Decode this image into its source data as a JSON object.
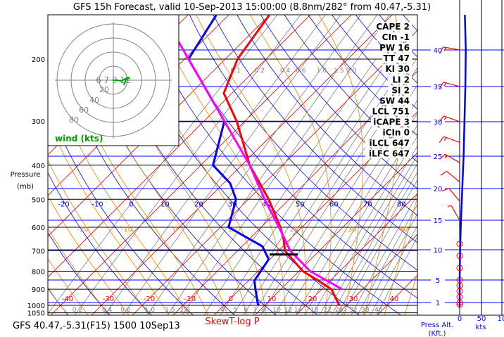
{
  "title": "GFS 15h Forecast, valid 10-Sep-2013 15:00:00 (8.8nm/282° from 40.47,-5.31)",
  "footer_left": "GFS 40.47,-5.31(F15) 1500 10Sep13",
  "footer_center": "SkewT-log P",
  "pressure_axis_label": [
    "Pressure",
    "(mb)"
  ],
  "right_panel": {
    "alt_label": [
      "Press Alt.",
      "(Kft.)"
    ],
    "speed_ticks": [
      "0",
      "50",
      "10"
    ],
    "speed_unit": "kts"
  },
  "hodograph": {
    "label": "wind (kts)",
    "ring_labels": [
      "20",
      "40",
      "60",
      "80"
    ],
    "height_labels": "6 7 9 12"
  },
  "indices": [
    "CAPE 2",
    "CIn -1",
    "PW 16",
    "TT 47",
    "KI 30",
    "LI 2",
    "SI 2",
    "SW 44",
    "LCL 751",
    "iCAPE 3",
    "iCIn 0",
    "iLCL 647",
    "iLFC 647"
  ],
  "colors": {
    "temperature": "#ff0000",
    "dewpoint": "#0000ff",
    "parcel": "#ff00ff",
    "isotherm": "#ff0000",
    "dry_adiabat": "#0000ff",
    "moist_adiabat": "#ff8000",
    "mixing_ratio": "#808080",
    "hodograph": "#00a000"
  },
  "chart_data": {
    "type": "line",
    "title": "SkewT-log P",
    "ylabel": "Pressure (mb)",
    "ylim": [
      1050,
      150
    ],
    "pressure_ticks": [
      "200",
      "300",
      "400",
      "500",
      "600",
      "700",
      "800",
      "900",
      "1000",
      "1050"
    ],
    "isotherm_labels": [
      "-40",
      "-30",
      "-20",
      "-10",
      "0",
      "10",
      "20",
      "30",
      "40"
    ],
    "dry_adiabat_labels": [
      "-20",
      "-10",
      "0",
      "10",
      "20",
      "30",
      "40",
      "50",
      "60",
      "70",
      "80"
    ],
    "moist_adiabat_labels": [
      "-20",
      "-10",
      "0",
      "10",
      "20",
      "30",
      "40"
    ],
    "mixing_ratio_top_labels": [
      "0.1",
      "0.2",
      "0.4",
      "0.6",
      "1.0",
      "1.5",
      "2.0"
    ],
    "mixing_ratio_bottom_labels": [
      "0.2",
      "0.4",
      "0.6",
      "1.0",
      "1.5",
      "2.0",
      "4",
      "5",
      "6",
      "7",
      "8",
      "10",
      "12",
      "14",
      "18",
      "22",
      "26",
      "32",
      "38",
      "46"
    ],
    "altitude_ticks_kft": [
      "40",
      "35",
      "30",
      "25",
      "20",
      "15",
      "10",
      "5",
      "1"
    ],
    "lcl_pressure": 751,
    "series": [
      {
        "name": "temperature",
        "p": [
          1000,
          900,
          850,
          800,
          700,
          650,
          600,
          500,
          400,
          300,
          250,
          200,
          150
        ],
        "t": [
          28.3,
          22.4,
          17,
          11,
          1.6,
          -1.5,
          -5.3,
          -15,
          -28,
          -42,
          -52,
          -57,
          -60
        ]
      },
      {
        "name": "dewpoint",
        "p": [
          1000,
          900,
          850,
          800,
          740,
          680,
          600,
          500,
          450,
          400,
          300,
          200,
          150
        ],
        "t": [
          8.4,
          3.8,
          1.4,
          0.7,
          -0.3,
          -5,
          -18,
          -23,
          -28.4,
          -37,
          -45,
          -69,
          -73
        ]
      },
      {
        "name": "parcel",
        "p": [
          900,
          800,
          700,
          620,
          500,
          400,
          300,
          200,
          150
        ],
        "t": [
          25,
          12.8,
          2.9,
          -3.8,
          -16,
          -28,
          -45,
          -69,
          -86
        ]
      }
    ],
    "wind_speed_profile": {
      "alt_kft": [
        0,
        5,
        10,
        15,
        20,
        25,
        30,
        35,
        40,
        45
      ],
      "kts": [
        0,
        0,
        1,
        3,
        6,
        9,
        11,
        13,
        14,
        12
      ]
    },
    "wind_barbs": [
      {
        "alt_kft": 40,
        "dir": 280,
        "kts": 15
      },
      {
        "alt_kft": 35,
        "dir": 285,
        "kts": 15
      },
      {
        "alt_kft": 30,
        "dir": 290,
        "kts": 15
      },
      {
        "alt_kft": 27,
        "dir": 290,
        "kts": 15
      },
      {
        "alt_kft": 24,
        "dir": 300,
        "kts": 15
      },
      {
        "alt_kft": 21,
        "dir": 310,
        "kts": 10
      },
      {
        "alt_kft": 18,
        "dir": 320,
        "kts": 10
      },
      {
        "alt_kft": 15,
        "dir": 330,
        "kts": 5
      }
    ],
    "calm_levels_kft": [
      0.5,
      1,
      2,
      3,
      4,
      5,
      7,
      9,
      11
    ]
  }
}
